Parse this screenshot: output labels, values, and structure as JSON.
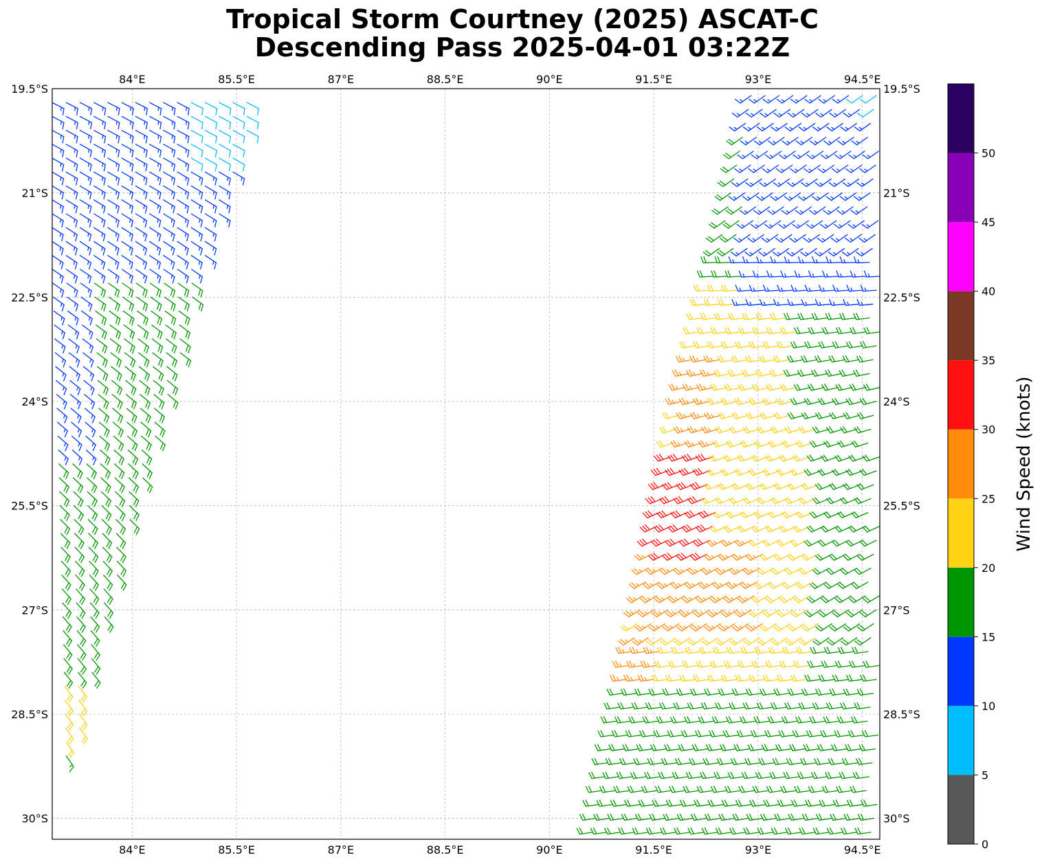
{
  "title": {
    "line1": "Tropical Storm Courtney (2025) ASCAT-C",
    "line2": "Descending Pass 2025-04-01 03:22Z"
  },
  "map": {
    "lon_range": [
      82.85,
      94.75
    ],
    "lat_range": [
      -30.3,
      -19.5
    ],
    "lon_ticks": [
      {
        "value": 84.0,
        "label": "84°E"
      },
      {
        "value": 85.5,
        "label": "85.5°E"
      },
      {
        "value": 87.0,
        "label": "87°E"
      },
      {
        "value": 88.5,
        "label": "88.5°E"
      },
      {
        "value": 90.0,
        "label": "90°E"
      },
      {
        "value": 91.5,
        "label": "91.5°E"
      },
      {
        "value": 93.0,
        "label": "93°E"
      },
      {
        "value": 94.5,
        "label": "94.5°E"
      }
    ],
    "lat_ticks": [
      {
        "value": -19.5,
        "label": "19.5°S"
      },
      {
        "value": -21.0,
        "label": "21°S"
      },
      {
        "value": -22.5,
        "label": "22.5°S"
      },
      {
        "value": -24.0,
        "label": "24°S"
      },
      {
        "value": -25.5,
        "label": "25.5°S"
      },
      {
        "value": -27.0,
        "label": "27°S"
      },
      {
        "value": -28.5,
        "label": "28.5°S"
      },
      {
        "value": -30.0,
        "label": "30°S"
      }
    ],
    "grid": true
  },
  "colorbar": {
    "label": "Wind Speed (knots)",
    "bounds": [
      0,
      5,
      10,
      15,
      20,
      25,
      30,
      35,
      40,
      45,
      50,
      55
    ],
    "tick_labels": [
      "0",
      "5",
      "10",
      "15",
      "20",
      "25",
      "30",
      "35",
      "40",
      "45",
      "50"
    ],
    "colors": [
      "#585858",
      "#00bfff",
      "#0038ff",
      "#009600",
      "#ffd214",
      "#ff8c0a",
      "#ff1010",
      "#7a3a25",
      "#ff00ff",
      "#8a00b4",
      "#2a0060"
    ]
  },
  "wind_field": {
    "swaths": [
      {
        "name": "west-swath",
        "anchor": [
          83.0,
          -19.7
        ],
        "row_step": [
          0.0,
          -0.2
        ],
        "col_step": [
          0.2,
          0.0
        ],
        "rows": 48,
        "cols": [
          11,
          15
        ],
        "west_edge": [
          [
            -19.7,
            82.85
          ],
          [
            -22.0,
            82.85
          ],
          [
            -25.0,
            82.95
          ],
          [
            -28.9,
            83.05
          ]
        ],
        "east_edge": [
          [
            -19.7,
            85.8
          ],
          [
            -21.5,
            85.2
          ],
          [
            -24.0,
            84.5
          ],
          [
            -26.5,
            83.8
          ],
          [
            -28.9,
            83.2
          ]
        ],
        "speed_regions": [
          {
            "lat_min": -19.5,
            "lat_max": -20.6,
            "lon_min": 84.8,
            "lon_max": 86.0,
            "speed": 8
          },
          {
            "lat_min": -19.5,
            "lat_max": -22.1,
            "lon_min": 82.8,
            "lon_max": 86.0,
            "speed": 13
          },
          {
            "lat_min": -22.1,
            "lat_max": -24.8,
            "lon_min": 82.8,
            "lon_max": 83.35,
            "speed": 13
          },
          {
            "lat_min": -22.1,
            "lat_max": -28.0,
            "lon_min": 82.8,
            "lon_max": 86.0,
            "speed": 18
          },
          {
            "lat_min": -28.0,
            "lat_max": -29.0,
            "lon_min": 82.8,
            "lon_max": 86.0,
            "speed": 22
          }
        ],
        "direction_deg": 130
      },
      {
        "name": "east-swath",
        "anchor": [
          93.0,
          -19.6
        ],
        "row_step": [
          0.0,
          -0.2
        ],
        "col_step": [
          0.2,
          0.0
        ],
        "rows": 54,
        "cols": [
          9,
          22
        ],
        "west_edge": [
          [
            -19.6,
            92.9
          ],
          [
            -22.0,
            92.4
          ],
          [
            -24.0,
            91.9
          ],
          [
            -26.0,
            91.5
          ],
          [
            -28.0,
            91.1
          ],
          [
            -30.3,
            90.6
          ]
        ],
        "east_edge": [
          [
            -19.6,
            94.75
          ],
          [
            -30.3,
            94.75
          ]
        ],
        "speed_regions": [
          {
            "lat_min": -19.5,
            "lat_max": -19.9,
            "lon_min": 94.5,
            "lon_max": 94.8,
            "speed": 8
          },
          {
            "lat_min": -19.5,
            "lat_max": -22.6,
            "lon_min": 92.8,
            "lon_max": 94.8,
            "speed": 13
          },
          {
            "lat_min": -19.5,
            "lat_max": -22.3,
            "lon_min": 92.3,
            "lon_max": 93.3,
            "speed": 18
          },
          {
            "lat_min": -22.3,
            "lat_max": -24.3,
            "lon_min": 93.6,
            "lon_max": 94.8,
            "speed": 18
          },
          {
            "lat_min": -24.3,
            "lat_max": -29.1,
            "lon_min": 93.9,
            "lon_max": 94.8,
            "speed": 18
          },
          {
            "lat_min": -28.2,
            "lat_max": -30.3,
            "lon_min": 90.5,
            "lon_max": 94.8,
            "speed": 18
          },
          {
            "lat_min": -29.6,
            "lat_max": -30.3,
            "lon_min": 93.8,
            "lon_max": 94.8,
            "speed": 13
          },
          {
            "lat_min": -24.8,
            "lat_max": -26.3,
            "lon_min": 91.5,
            "lon_max": 92.4,
            "speed": 32
          },
          {
            "lat_min": -23.4,
            "lat_max": -25.0,
            "lon_min": 91.9,
            "lon_max": 92.5,
            "speed": 27
          },
          {
            "lat_min": -26.0,
            "lat_max": -27.4,
            "lon_min": 91.3,
            "lon_max": 93.1,
            "speed": 27
          },
          {
            "lat_min": -27.4,
            "lat_max": -28.6,
            "lon_min": 90.9,
            "lon_max": 91.6,
            "speed": 27
          },
          {
            "lat_min": -22.3,
            "lat_max": -29.6,
            "lon_min": 90.5,
            "lon_max": 94.8,
            "speed": 22
          }
        ],
        "direction_deg": 250
      }
    ]
  }
}
